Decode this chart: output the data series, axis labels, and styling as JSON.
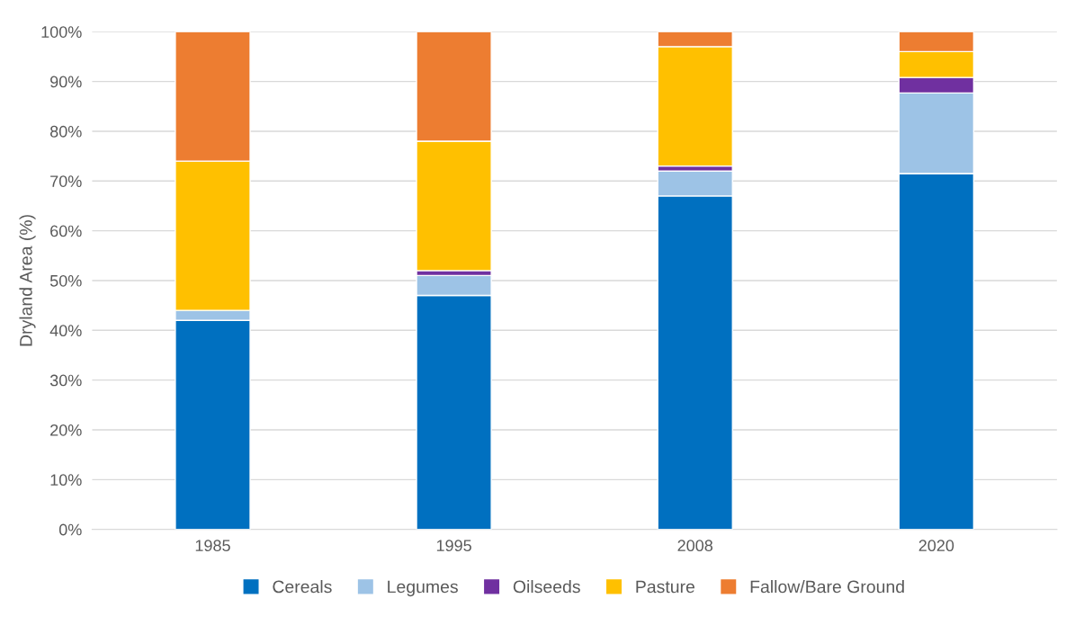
{
  "chart_data": {
    "type": "bar",
    "stacked": true,
    "ylabel": "Dryland Area (%)",
    "categories": [
      "1985",
      "1995",
      "2008",
      "2020"
    ],
    "series": [
      {
        "name": "Cereals",
        "color": "#0070c0",
        "values": [
          42,
          47,
          67,
          71.5
        ]
      },
      {
        "name": "Legumes",
        "color": "#9dc3e6",
        "values": [
          2,
          4,
          5,
          16.2
        ]
      },
      {
        "name": "Oilseeds",
        "color": "#7030a0",
        "values": [
          0,
          1,
          1,
          3.1
        ]
      },
      {
        "name": "Pasture",
        "color": "#ffc000",
        "values": [
          30,
          26,
          24,
          5.2
        ]
      },
      {
        "name": "Fallow/Bare Ground",
        "color": "#ed7d31",
        "values": [
          26,
          22,
          3,
          4
        ]
      }
    ],
    "ylim": [
      0,
      100
    ],
    "yticks": [
      {
        "value": 0,
        "label": "0%"
      },
      {
        "value": 10,
        "label": "10%"
      },
      {
        "value": 20,
        "label": "20%"
      },
      {
        "value": 30,
        "label": "30%"
      },
      {
        "value": 40,
        "label": "40%"
      },
      {
        "value": 50,
        "label": "50%"
      },
      {
        "value": 60,
        "label": "60%"
      },
      {
        "value": 70,
        "label": "70%"
      },
      {
        "value": 80,
        "label": "80%"
      },
      {
        "value": 90,
        "label": "90%"
      },
      {
        "value": 100,
        "label": "100%"
      }
    ],
    "grid": "y",
    "legend": "bottom"
  }
}
